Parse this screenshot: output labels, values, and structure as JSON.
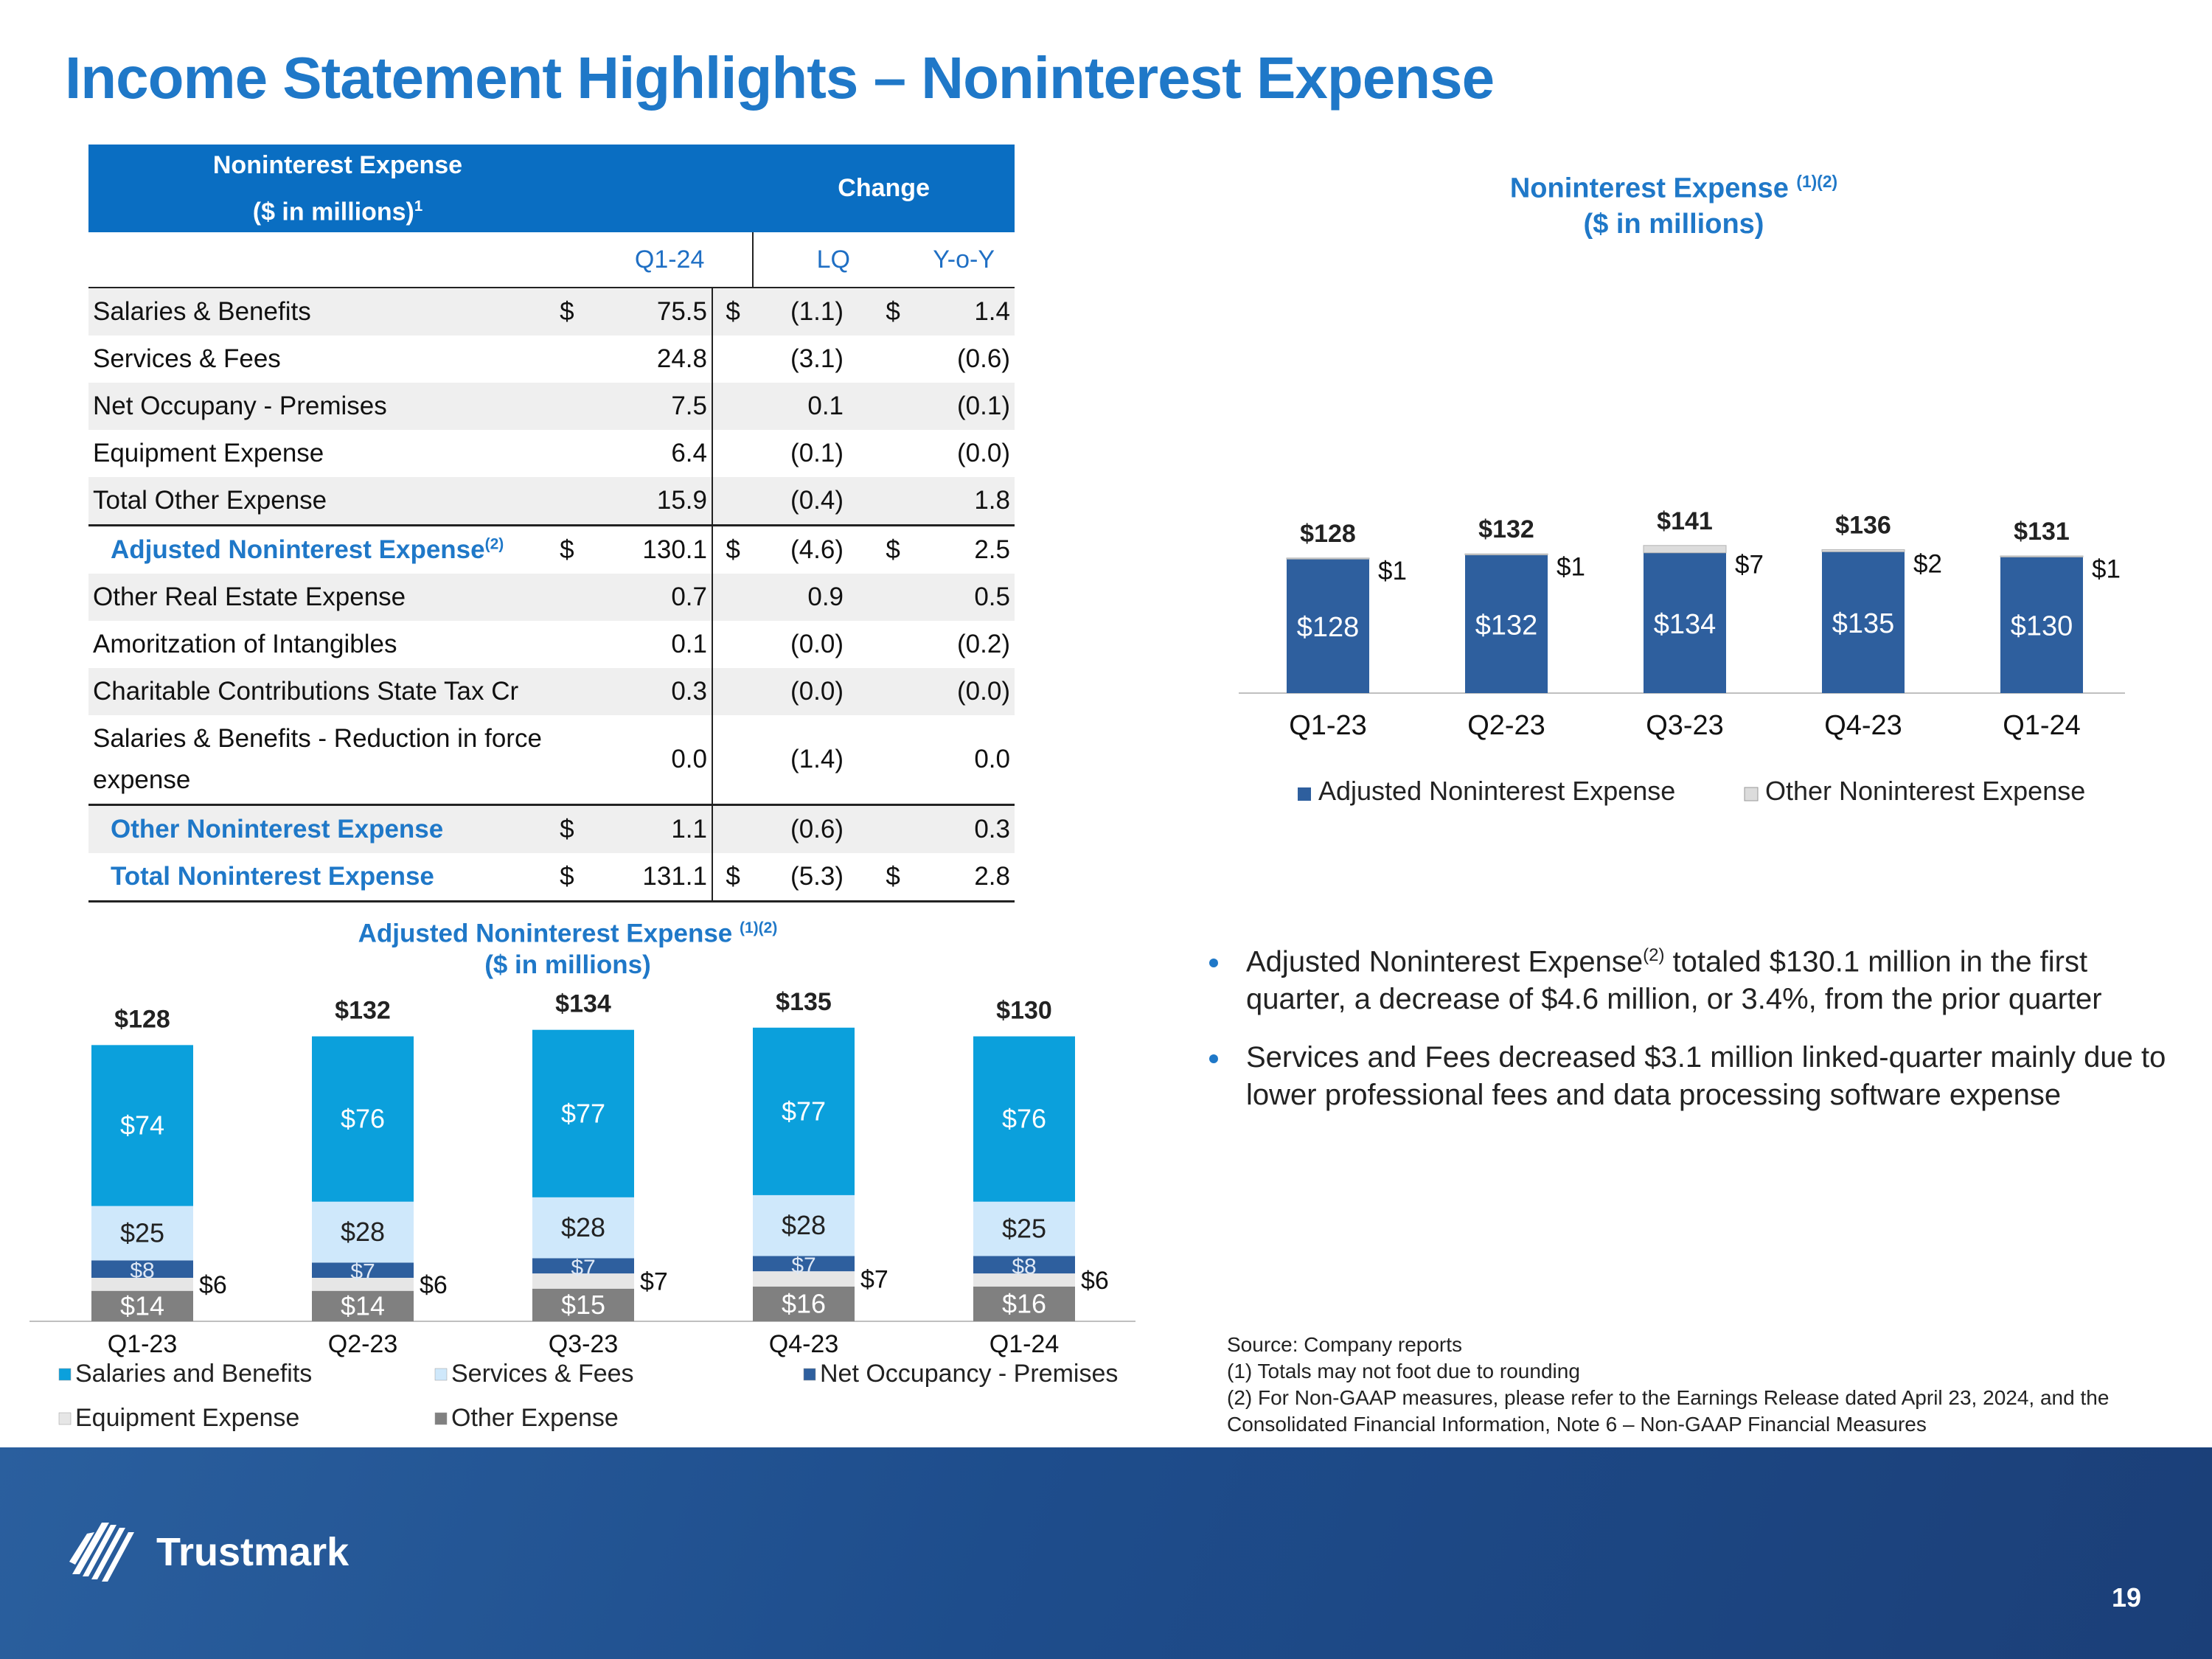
{
  "title": "Income Statement Highlights – Noninterest Expense",
  "table": {
    "header_line1": "Noninterest Expense",
    "header_line2": "($ in millions)",
    "header_sup": "1",
    "change_label": "Change",
    "col_q": "Q1-24",
    "col_lq": "LQ",
    "col_yoy": "Y-o-Y",
    "currency": "$",
    "adj_sup": "(2)",
    "rows": [
      {
        "label": "Salaries & Benefits",
        "q": "75.5",
        "lq": "(1.1)",
        "yoy": "1.4"
      },
      {
        "label": "Services & Fees",
        "q": "24.8",
        "lq": "(3.1)",
        "yoy": "(0.6)"
      },
      {
        "label": "Net Occupany - Premises",
        "q": "7.5",
        "lq": "0.1",
        "yoy": "(0.1)"
      },
      {
        "label": "Equipment Expense",
        "q": "6.4",
        "lq": "(0.1)",
        "yoy": "(0.0)"
      },
      {
        "label": "Total Other Expense",
        "q": "15.9",
        "lq": "(0.4)",
        "yoy": "1.8"
      },
      {
        "label": "Adjusted Noninterest Expense",
        "q": "130.1",
        "lq": "(4.6)",
        "yoy": "2.5"
      },
      {
        "label": "Other Real Estate Expense",
        "q": "0.7",
        "lq": "0.9",
        "yoy": "0.5"
      },
      {
        "label": "Amoritzation of Intangibles",
        "q": "0.1",
        "lq": "(0.0)",
        "yoy": "(0.2)"
      },
      {
        "label": "Charitable Contributions State Tax Cr",
        "q": "0.3",
        "lq": "(0.0)",
        "yoy": "(0.0)"
      },
      {
        "label": "Salaries & Benefits - Reduction in force expense",
        "q": "0.0",
        "lq": "(1.4)",
        "yoy": "0.0"
      },
      {
        "label": "Other Noninterest Expense",
        "q": "1.1",
        "lq": "(0.6)",
        "yoy": "0.3"
      },
      {
        "label": "Total Noninterest Expense",
        "q": "131.1",
        "lq": "(5.3)",
        "yoy": "2.8"
      }
    ]
  },
  "chart_data": [
    {
      "type": "bar",
      "stacked": true,
      "title": "Noninterest Expense",
      "title_sup": "(1)(2)",
      "subtitle": "($ in millions)",
      "categories": [
        "Q1-23",
        "Q2-23",
        "Q3-23",
        "Q4-23",
        "Q1-24"
      ],
      "series": [
        {
          "name": "Adjusted Noninterest Expense",
          "color": "#2e5f9e",
          "values": [
            128,
            132,
            134,
            135,
            130
          ]
        },
        {
          "name": "Other Noninterest Expense",
          "color": "#dcdcdc",
          "values": [
            1,
            1,
            7,
            2,
            1
          ]
        }
      ],
      "totals": [
        128,
        132,
        141,
        136,
        131
      ],
      "segment_labels": [
        "$128",
        "$132",
        "$134",
        "$135",
        "$130"
      ],
      "other_labels": [
        "$1",
        "$1",
        "$7",
        "$2",
        "$1"
      ],
      "total_labels": [
        "$128",
        "$132",
        "$141",
        "$136",
        "$131"
      ],
      "ylim": [
        0,
        150
      ]
    },
    {
      "type": "bar",
      "stacked": true,
      "title": "Adjusted Noninterest Expense",
      "title_sup": "(1)(2)",
      "subtitle": "($ in millions)",
      "categories": [
        "Q1-23",
        "Q2-23",
        "Q3-23",
        "Q4-23",
        "Q1-24"
      ],
      "series": [
        {
          "name": "Other Expense",
          "color": "#808080",
          "values": [
            14,
            14,
            15,
            16,
            16
          ]
        },
        {
          "name": "Equipment Expense",
          "color": "#e6e6e6",
          "values": [
            6,
            6,
            7,
            7,
            6
          ]
        },
        {
          "name": "Net Occupancy - Premises",
          "color": "#2e5f9e",
          "values": [
            8,
            7,
            7,
            7,
            8
          ]
        },
        {
          "name": "Services & Fees",
          "color": "#cfe8fb",
          "values": [
            25,
            28,
            28,
            28,
            25
          ]
        },
        {
          "name": "Salaries and Benefits",
          "color": "#0ba0dc",
          "values": [
            74,
            76,
            77,
            77,
            76
          ]
        }
      ],
      "labels": {
        "other": [
          "$14",
          "$14",
          "$15",
          "$16",
          "$16"
        ],
        "equipment": [
          "$6",
          "$6",
          "$7",
          "$7",
          "$6"
        ],
        "occupancy": [
          "$8",
          "$7",
          "$7",
          "$7",
          "$8"
        ],
        "services": [
          "$25",
          "$28",
          "$28",
          "$28",
          "$25"
        ],
        "salaries": [
          "$74",
          "$76",
          "$77",
          "$77",
          "$76"
        ],
        "totals": [
          "$128",
          "$132",
          "$134",
          "$135",
          "$130"
        ]
      },
      "legend_order": [
        "Salaries and Benefits",
        "Services & Fees",
        "Net Occupancy - Premises",
        "Equipment Expense",
        "Other Expense"
      ],
      "ylim": [
        0,
        140
      ]
    }
  ],
  "bullets": {
    "b1_pre": "Adjusted Noninterest Expense",
    "b1_sup": "(2)",
    "b1_post": " totaled $130.1 million in the first quarter, a decrease of $4.6 million, or 3.4%, from the prior quarter",
    "b2": "Services and Fees decreased $3.1 million linked-quarter mainly due to lower professional fees and data processing software expense"
  },
  "source": {
    "line1": "Source: Company reports",
    "line2": "(1) Totals may not foot due to rounding",
    "line3": "(2) For Non-GAAP measures, please refer to the Earnings Release dated April 23, 2024, and the Consolidated Financial Information, Note 6 – Non-GAAP Financial Measures"
  },
  "footer": {
    "logo_text": "Trustmark",
    "page_number": "19",
    "colors": {
      "bg": "#1e4d8c"
    }
  }
}
